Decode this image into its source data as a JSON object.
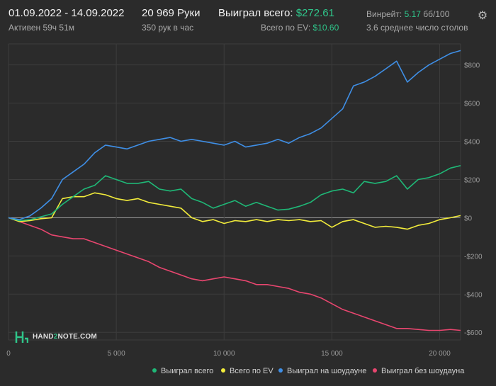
{
  "header": {
    "date_range": "01.09.2022 - 14.09.2022",
    "active_time": "Активен 59ч 51м",
    "hands": "20 969 Руки",
    "hands_per_hour": "350 рук в час",
    "won_total_label": "Выиграл всего:",
    "won_total_value": "$272.61",
    "ev_total_label": "Всего по EV:",
    "ev_total_value": "$10.60",
    "winrate_label": "Винрейт:",
    "winrate_value": "5.17",
    "winrate_unit": "бб/100",
    "avg_tables": "3.6 среднее число столов",
    "settings_icon": "gear-icon"
  },
  "logo": {
    "text_a": "HAND",
    "text_b": "2",
    "text_c": "NOTE.COM"
  },
  "colors": {
    "background": "#2b2b2b",
    "grid": "#3d3d3d",
    "zero_line": "#bdbdbd",
    "won": "#1fb877",
    "ev": "#f2ec3b",
    "showdown": "#3f8fe6",
    "non_showdown": "#e8466f"
  },
  "chart_data": {
    "type": "line",
    "x_ticks": [
      0,
      5000,
      10000,
      15000,
      20000
    ],
    "x_tick_labels": [
      "0",
      "5 000",
      "10 000",
      "15 000",
      "20 000"
    ],
    "xlim": [
      0,
      20969
    ],
    "y_ticks": [
      800,
      600,
      400,
      200,
      0,
      -200,
      -400,
      -600
    ],
    "y_tick_labels": [
      "$800",
      "$600",
      "$400",
      "$200",
      "$0",
      "-$200",
      "-$400",
      "-$600"
    ],
    "ylim": [
      -640,
      910
    ],
    "grid": true,
    "legend": "bottom",
    "series": [
      {
        "name": "Выиграл всего",
        "color_key": "won",
        "points": [
          [
            0,
            0
          ],
          [
            500,
            -15
          ],
          [
            1000,
            -10
          ],
          [
            1500,
            5
          ],
          [
            2000,
            20
          ],
          [
            2500,
            70
          ],
          [
            3000,
            110
          ],
          [
            3500,
            150
          ],
          [
            4000,
            170
          ],
          [
            4500,
            220
          ],
          [
            5000,
            200
          ],
          [
            5500,
            180
          ],
          [
            6000,
            180
          ],
          [
            6500,
            190
          ],
          [
            7000,
            150
          ],
          [
            7500,
            140
          ],
          [
            8000,
            150
          ],
          [
            8500,
            100
          ],
          [
            9000,
            80
          ],
          [
            9500,
            50
          ],
          [
            10000,
            70
          ],
          [
            10500,
            90
          ],
          [
            11000,
            60
          ],
          [
            11500,
            80
          ],
          [
            12000,
            60
          ],
          [
            12500,
            40
          ],
          [
            13000,
            45
          ],
          [
            13500,
            60
          ],
          [
            14000,
            80
          ],
          [
            14500,
            120
          ],
          [
            15000,
            140
          ],
          [
            15500,
            150
          ],
          [
            16000,
            130
          ],
          [
            16500,
            190
          ],
          [
            17000,
            180
          ],
          [
            17500,
            190
          ],
          [
            18000,
            220
          ],
          [
            18500,
            150
          ],
          [
            19000,
            200
          ],
          [
            19500,
            210
          ],
          [
            20000,
            230
          ],
          [
            20500,
            260
          ],
          [
            20969,
            273
          ]
        ]
      },
      {
        "name": "Всего по EV",
        "color_key": "ev",
        "points": [
          [
            0,
            0
          ],
          [
            500,
            -20
          ],
          [
            1000,
            -15
          ],
          [
            1500,
            -5
          ],
          [
            2000,
            0
          ],
          [
            2500,
            100
          ],
          [
            3000,
            110
          ],
          [
            3500,
            110
          ],
          [
            4000,
            130
          ],
          [
            4500,
            120
          ],
          [
            5000,
            100
          ],
          [
            5500,
            90
          ],
          [
            6000,
            100
          ],
          [
            6500,
            80
          ],
          [
            7000,
            70
          ],
          [
            7500,
            60
          ],
          [
            8000,
            50
          ],
          [
            8500,
            0
          ],
          [
            9000,
            -20
          ],
          [
            9500,
            -10
          ],
          [
            10000,
            -30
          ],
          [
            10500,
            -15
          ],
          [
            11000,
            -20
          ],
          [
            11500,
            -10
          ],
          [
            12000,
            -20
          ],
          [
            12500,
            -10
          ],
          [
            13000,
            -15
          ],
          [
            13500,
            -10
          ],
          [
            14000,
            -20
          ],
          [
            14500,
            -15
          ],
          [
            15000,
            -50
          ],
          [
            15500,
            -20
          ],
          [
            16000,
            -10
          ],
          [
            16500,
            -30
          ],
          [
            17000,
            -50
          ],
          [
            17500,
            -45
          ],
          [
            18000,
            -50
          ],
          [
            18500,
            -60
          ],
          [
            19000,
            -40
          ],
          [
            19500,
            -30
          ],
          [
            20000,
            -10
          ],
          [
            20500,
            0
          ],
          [
            20969,
            11
          ]
        ]
      },
      {
        "name": "Выиграл на шоудауне",
        "color_key": "showdown",
        "points": [
          [
            0,
            0
          ],
          [
            500,
            -10
          ],
          [
            1000,
            10
          ],
          [
            1500,
            50
          ],
          [
            2000,
            100
          ],
          [
            2500,
            200
          ],
          [
            3000,
            240
          ],
          [
            3500,
            280
          ],
          [
            4000,
            340
          ],
          [
            4500,
            380
          ],
          [
            5000,
            370
          ],
          [
            5500,
            360
          ],
          [
            6000,
            380
          ],
          [
            6500,
            400
          ],
          [
            7000,
            410
          ],
          [
            7500,
            420
          ],
          [
            8000,
            400
          ],
          [
            8500,
            410
          ],
          [
            9000,
            400
          ],
          [
            9500,
            390
          ],
          [
            10000,
            380
          ],
          [
            10500,
            400
          ],
          [
            11000,
            370
          ],
          [
            11500,
            380
          ],
          [
            12000,
            390
          ],
          [
            12500,
            410
          ],
          [
            13000,
            390
          ],
          [
            13500,
            420
          ],
          [
            14000,
            440
          ],
          [
            14500,
            470
          ],
          [
            15000,
            520
          ],
          [
            15500,
            570
          ],
          [
            16000,
            690
          ],
          [
            16500,
            710
          ],
          [
            17000,
            740
          ],
          [
            17500,
            780
          ],
          [
            18000,
            820
          ],
          [
            18500,
            710
          ],
          [
            19000,
            760
          ],
          [
            19500,
            800
          ],
          [
            20000,
            830
          ],
          [
            20500,
            860
          ],
          [
            20969,
            875
          ]
        ]
      },
      {
        "name": "Выиграл без шоудауна",
        "color_key": "non_showdown",
        "points": [
          [
            0,
            0
          ],
          [
            500,
            -20
          ],
          [
            1000,
            -40
          ],
          [
            1500,
            -60
          ],
          [
            2000,
            -90
          ],
          [
            2500,
            -100
          ],
          [
            3000,
            -110
          ],
          [
            3500,
            -110
          ],
          [
            4000,
            -130
          ],
          [
            4500,
            -150
          ],
          [
            5000,
            -170
          ],
          [
            5500,
            -190
          ],
          [
            6000,
            -210
          ],
          [
            6500,
            -230
          ],
          [
            7000,
            -260
          ],
          [
            7500,
            -280
          ],
          [
            8000,
            -300
          ],
          [
            8500,
            -320
          ],
          [
            9000,
            -330
          ],
          [
            9500,
            -320
          ],
          [
            10000,
            -310
          ],
          [
            10500,
            -320
          ],
          [
            11000,
            -330
          ],
          [
            11500,
            -350
          ],
          [
            12000,
            -350
          ],
          [
            12500,
            -360
          ],
          [
            13000,
            -370
          ],
          [
            13500,
            -390
          ],
          [
            14000,
            -400
          ],
          [
            14500,
            -420
          ],
          [
            15000,
            -450
          ],
          [
            15500,
            -480
          ],
          [
            16000,
            -500
          ],
          [
            16500,
            -520
          ],
          [
            17000,
            -540
          ],
          [
            17500,
            -560
          ],
          [
            18000,
            -580
          ],
          [
            18500,
            -580
          ],
          [
            19000,
            -585
          ],
          [
            19500,
            -590
          ],
          [
            20000,
            -590
          ],
          [
            20500,
            -585
          ],
          [
            20969,
            -590
          ]
        ]
      }
    ]
  }
}
